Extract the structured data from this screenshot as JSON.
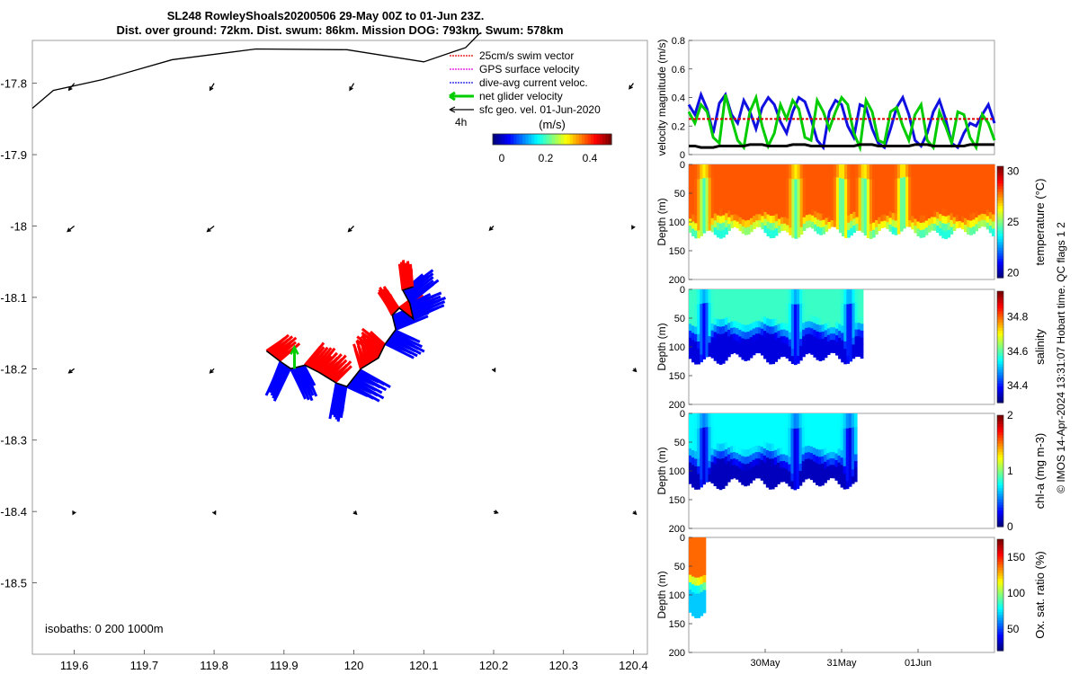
{
  "title": {
    "line1": "SL248 RowleyShoals20200506 29-May 00Z to 01-Jun 23Z.",
    "line2": "Dist. over ground: 72km. Dist. swum: 86km. Mission DOG: 793km. Swum: 578km"
  },
  "footer": "© IMOS 14-Apr-2024 13:31:07 Hobart time. QC flags 1  2",
  "colors": {
    "swim": "#e00000",
    "gps": "#e000e0",
    "current": "#1010e0",
    "glider": "#00cc00",
    "geo": "#000000",
    "track_red": "#ff0000",
    "track_blue": "#0000ff"
  },
  "chart_data": [
    {
      "type": "map",
      "xlim": [
        119.54,
        120.42
      ],
      "ylim": [
        -18.6,
        -17.74
      ],
      "x_ticks": [
        119.6,
        119.7,
        119.8,
        119.9,
        120,
        120.1,
        120.2,
        120.3,
        120.4
      ],
      "x_tick_labels": [
        "119.6",
        "119.7",
        "119.8",
        "119.9",
        "120",
        "120.1",
        "120.2",
        "120.3",
        "120.4"
      ],
      "y_ticks": [
        -17.8,
        -17.9,
        -18,
        -18.1,
        -18.2,
        -18.3,
        -18.4,
        -18.5
      ],
      "y_tick_labels": [
        "-17.8",
        "-17.9",
        "-18",
        "-18.1",
        "-18.2",
        "-18.3",
        "-18.4",
        "-18.5"
      ],
      "legend": {
        "entries": [
          "25cm/s swim vector",
          "GPS surface velocity",
          "dive-avg current veloc.",
          "net glider velocity",
          "sfc geo. vel. 01-Jun-2020"
        ],
        "duration_label": "4h",
        "colorbar_label": "(m/s)",
        "colorbar_ticks": [
          "0",
          "0.2",
          "0.4"
        ],
        "colorbar_range": [
          0,
          0.5
        ]
      },
      "isobath_label": "isobaths: 0   200  1000m",
      "isobath_0m": [
        [
          119.54,
          -17.835
        ],
        [
          119.57,
          -17.81
        ],
        [
          119.64,
          -17.795
        ],
        [
          119.74,
          -17.767
        ],
        [
          119.86,
          -17.752
        ],
        [
          119.99,
          -17.753
        ],
        [
          120.1,
          -17.77
        ],
        [
          120.16,
          -17.75
        ],
        [
          120.18,
          -17.73
        ]
      ],
      "glider_track": [
        [
          119.875,
          -18.175
        ],
        [
          119.895,
          -18.19
        ],
        [
          119.91,
          -18.2
        ],
        [
          119.93,
          -18.195
        ],
        [
          119.95,
          -18.205
        ],
        [
          119.975,
          -18.22
        ],
        [
          119.99,
          -18.225
        ],
        [
          120.01,
          -18.2
        ],
        [
          120.035,
          -18.185
        ],
        [
          120.045,
          -18.165
        ],
        [
          120.06,
          -18.145
        ],
        [
          120.055,
          -18.125
        ],
        [
          120.065,
          -18.115
        ],
        [
          120.085,
          -18.13
        ],
        [
          120.08,
          -18.108
        ],
        [
          120.07,
          -18.09
        ],
        [
          120.085,
          -18.085
        ]
      ],
      "geo_vectors": [
        {
          "lon": 119.6,
          "lat": -17.8,
          "u": -0.04,
          "v": -0.05
        },
        {
          "lon": 119.8,
          "lat": -17.8,
          "u": -0.03,
          "v": -0.05
        },
        {
          "lon": 120.0,
          "lat": -17.8,
          "u": -0.03,
          "v": -0.05
        },
        {
          "lon": 120.4,
          "lat": -17.8,
          "u": -0.03,
          "v": -0.04
        },
        {
          "lon": 119.6,
          "lat": -18.0,
          "u": -0.05,
          "v": -0.04
        },
        {
          "lon": 119.8,
          "lat": -18.0,
          "u": -0.05,
          "v": -0.04
        },
        {
          "lon": 120.0,
          "lat": -18.0,
          "u": -0.04,
          "v": -0.04
        },
        {
          "lon": 120.2,
          "lat": -18.0,
          "u": -0.03,
          "v": -0.03
        },
        {
          "lon": 120.4,
          "lat": -18.0,
          "u": -0.01,
          "v": -0.02
        },
        {
          "lon": 119.6,
          "lat": -18.2,
          "u": -0.04,
          "v": -0.03
        },
        {
          "lon": 119.8,
          "lat": -18.2,
          "u": -0.03,
          "v": -0.03
        },
        {
          "lon": 120.2,
          "lat": -18.2,
          "u": 0.01,
          "v": -0.02
        },
        {
          "lon": 120.4,
          "lat": -18.2,
          "u": 0.02,
          "v": -0.02
        },
        {
          "lon": 119.6,
          "lat": -18.4,
          "u": -0.01,
          "v": -0.02
        },
        {
          "lon": 119.8,
          "lat": -18.4,
          "u": 0.01,
          "v": -0.02
        },
        {
          "lon": 120.0,
          "lat": -18.4,
          "u": 0.02,
          "v": -0.02
        },
        {
          "lon": 120.2,
          "lat": -18.4,
          "u": 0.03,
          "v": -0.01
        },
        {
          "lon": 120.4,
          "lat": -18.4,
          "u": 0.02,
          "v": -0.02
        }
      ]
    },
    {
      "type": "line",
      "ylabel": "velocity magnitude (m/s)",
      "ylim": [
        0,
        0.8
      ],
      "y_ticks": [
        0,
        0.2,
        0.4,
        0.6,
        0.8
      ],
      "y_tick_labels": [
        "0",
        "0.2",
        "0.4",
        "0.6",
        "0.8"
      ],
      "x_range_days": [
        0,
        4
      ],
      "series": [
        {
          "color": "#1010e0",
          "values": [
            0.35,
            0.28,
            0.42,
            0.32,
            0.15,
            0.36,
            0.42,
            0.28,
            0.22,
            0.38,
            0.3,
            0.18,
            0.33,
            0.4,
            0.35,
            0.23,
            0.15,
            0.3,
            0.4,
            0.37,
            0.25,
            0.1,
            0.05,
            0.3,
            0.38,
            0.35,
            0.2,
            0.12,
            0.35,
            0.33,
            0.18,
            0.08,
            0.05,
            0.18,
            0.33,
            0.4,
            0.28,
            0.1,
            0.06,
            0.15,
            0.3,
            0.38,
            0.25,
            0.08,
            0.05,
            0.15,
            0.22,
            0.2,
            0.28,
            0.35,
            0.22
          ]
        },
        {
          "color": "#00cc00",
          "values": [
            0.3,
            0.22,
            0.35,
            0.3,
            0.12,
            0.08,
            0.42,
            0.25,
            0.1,
            0.05,
            0.3,
            0.4,
            0.2,
            0.06,
            0.15,
            0.35,
            0.25,
            0.38,
            0.32,
            0.12,
            0.1,
            0.38,
            0.3,
            0.18,
            0.3,
            0.4,
            0.35,
            0.15,
            0.05,
            0.38,
            0.3,
            0.1,
            0.08,
            0.3,
            0.33,
            0.2,
            0.1,
            0.28,
            0.35,
            0.1,
            0.05,
            0.3,
            0.2,
            0.08,
            0.3,
            0.28,
            0.12,
            0.05,
            0.28,
            0.22,
            0.1
          ]
        },
        {
          "color": "#000000",
          "values": [
            0.06,
            0.06,
            0.05,
            0.05,
            0.05,
            0.06,
            0.06,
            0.06,
            0.06,
            0.06,
            0.07,
            0.07,
            0.07,
            0.06,
            0.06,
            0.06,
            0.06,
            0.07,
            0.07,
            0.07,
            0.06,
            0.06,
            0.06,
            0.06,
            0.06,
            0.06,
            0.06,
            0.06,
            0.07,
            0.07,
            0.07,
            0.06,
            0.06,
            0.06,
            0.06,
            0.06,
            0.06,
            0.07,
            0.07,
            0.07,
            0.06,
            0.06,
            0.06,
            0.06,
            0.06,
            0.06,
            0.07,
            0.07,
            0.07,
            0.07,
            0.07
          ]
        },
        {
          "color": "#e00000",
          "dashed": true,
          "values": [
            0.25,
            0.25
          ]
        }
      ]
    },
    {
      "type": "heatmap",
      "ylabel": "Depth (m)",
      "ylim": [
        200,
        0
      ],
      "y_ticks": [
        0,
        50,
        100,
        150,
        200
      ],
      "y_tick_labels": [
        "0",
        "50",
        "100",
        "150",
        "200"
      ],
      "colorbar_label": "temperature (°C)",
      "colorbar_ticks": [
        "20",
        "25",
        "30"
      ],
      "colorbar_range": [
        19.5,
        30.5
      ],
      "colormap": "jet",
      "x_end": 4.0,
      "surface_value": 28.2,
      "bottom_depth": 118,
      "thermocline_depth": 88,
      "deep_value": 24.0,
      "plumes": [
        0.2,
        1.4,
        2.0,
        2.3,
        2.8
      ]
    },
    {
      "type": "heatmap",
      "ylabel": "Depth (m)",
      "ylim": [
        200,
        0
      ],
      "y_ticks": [
        0,
        50,
        100,
        150,
        200
      ],
      "y_tick_labels": [
        "0",
        "50",
        "100",
        "150",
        "200"
      ],
      "colorbar_label": "salinity",
      "colorbar_ticks": [
        "34.4",
        "34.6",
        "34.8"
      ],
      "colorbar_range": [
        34.3,
        34.95
      ],
      "colormap": "jet",
      "x_end": 2.28,
      "surface_value": 34.58,
      "bottom_depth": 120,
      "thermocline_depth": 55,
      "deep_value": 34.36,
      "plumes": [
        0.2,
        1.4,
        2.1
      ]
    },
    {
      "type": "heatmap",
      "ylabel": "Depth (m)",
      "ylim": [
        200,
        0
      ],
      "y_ticks": [
        0,
        50,
        100,
        150,
        200
      ],
      "y_tick_labels": [
        "0",
        "50",
        "100",
        "150",
        "200"
      ],
      "colorbar_label": "chl-a (mg m-3)",
      "colorbar_ticks": [
        "0",
        "1",
        "2"
      ],
      "colorbar_range": [
        0,
        2
      ],
      "colormap": "jet",
      "x_end": 2.2,
      "surface_value": 0.75,
      "bottom_depth": 122,
      "thermocline_depth": 60,
      "deep_value": 0.12,
      "plumes": [
        0.2,
        1.4,
        2.1
      ]
    },
    {
      "type": "heatmap",
      "ylabel": "Depth (m)",
      "ylim": [
        200,
        0
      ],
      "y_ticks": [
        0,
        50,
        100,
        150,
        200
      ],
      "y_tick_labels": [
        "0",
        "50",
        "100",
        "150",
        "200"
      ],
      "x_ticks": [
        "30May",
        "31May",
        "01Jun"
      ],
      "x_tick_days": [
        1,
        2,
        3
      ],
      "colorbar_label": "Ox. sat. ratio (%)",
      "colorbar_ticks": [
        "50",
        "100",
        "150"
      ],
      "colorbar_range": [
        20,
        175
      ],
      "colormap": "jet",
      "x_end": 0.22,
      "surface_value": 140,
      "bottom_depth": 130,
      "thermocline_depth": 60,
      "deep_value": 70,
      "plumes": []
    }
  ]
}
